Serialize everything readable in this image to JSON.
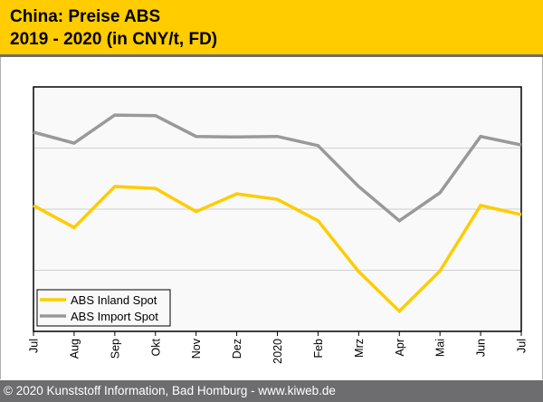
{
  "header": {
    "title_line1": "China: Preise ABS",
    "title_line2": "2019 - 2020 (in CNY/t, FD)",
    "background_color": "#ffcc00"
  },
  "footer": {
    "text": "© 2020 Kunststoff Information, Bad Homburg - www.kiweb.de",
    "background_color": "#6d6d6f"
  },
  "chart_data": {
    "type": "line",
    "title": "China: Preise ABS 2019 - 2020 (in CNY/t, FD)",
    "xlabel": "",
    "ylabel": "",
    "y_units_note": "relative units (no y-axis tick labels shown); 1 unit = 1 gridline interval",
    "ylim": [
      0,
      4
    ],
    "grid": true,
    "gridlines_y": [
      1,
      2,
      3
    ],
    "legend_position": "bottom-left",
    "categories": [
      "Jul",
      "Aug",
      "Sep",
      "Okt",
      "Nov",
      "Dez",
      "2020",
      "Feb",
      "Mrz",
      "Apr",
      "Mai",
      "Jun",
      "Jul"
    ],
    "series": [
      {
        "name": "ABS Inland Spot",
        "color": "#ffcc00",
        "values": [
          2.06,
          1.7,
          2.37,
          2.34,
          1.96,
          2.25,
          2.16,
          1.81,
          0.98,
          0.33,
          0.99,
          2.06,
          1.91
        ]
      },
      {
        "name": "ABS Import Spot",
        "color": "#999999",
        "values": [
          3.26,
          3.08,
          3.54,
          3.53,
          3.19,
          3.18,
          3.19,
          3.04,
          2.37,
          1.81,
          2.27,
          3.19,
          3.05
        ]
      }
    ]
  }
}
